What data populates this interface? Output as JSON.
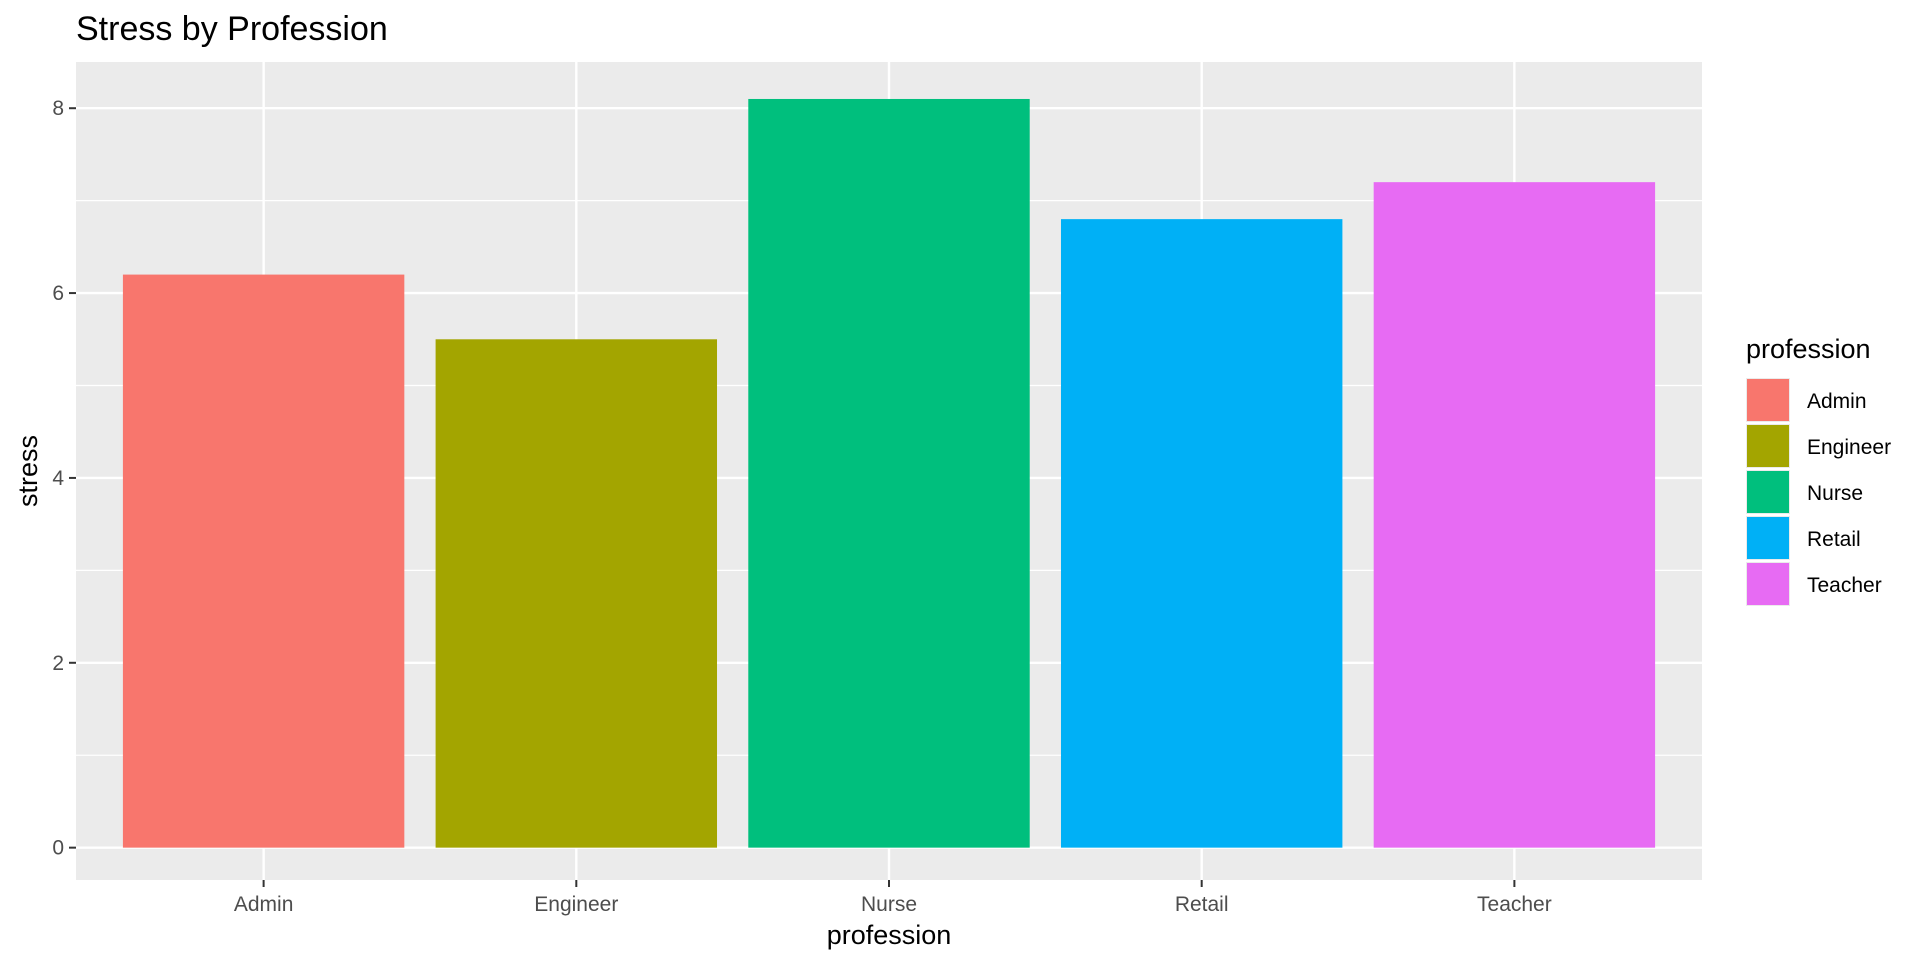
{
  "chart_data": {
    "type": "bar",
    "title": "Stress by Profession",
    "xlabel": "profession",
    "ylabel": "stress",
    "categories": [
      "Admin",
      "Engineer",
      "Nurse",
      "Retail",
      "Teacher"
    ],
    "values": [
      6.2,
      5.5,
      8.1,
      6.8,
      7.2
    ],
    "colors": [
      "#F8766D",
      "#A3A500",
      "#00BF7D",
      "#00B0F6",
      "#E76BF3"
    ],
    "ylim": [
      -0.35,
      8.5
    ],
    "y_ticks": [
      0,
      2,
      4,
      6,
      8
    ],
    "y_tick_labels": [
      "0",
      "2",
      "4",
      "6",
      "8"
    ],
    "grid": true,
    "panel_background": "#EBEBEB",
    "grid_color": "#FFFFFF",
    "legend": {
      "title": "profession",
      "position": "right",
      "entries": [
        "Admin",
        "Engineer",
        "Nurse",
        "Retail",
        "Teacher"
      ]
    }
  }
}
